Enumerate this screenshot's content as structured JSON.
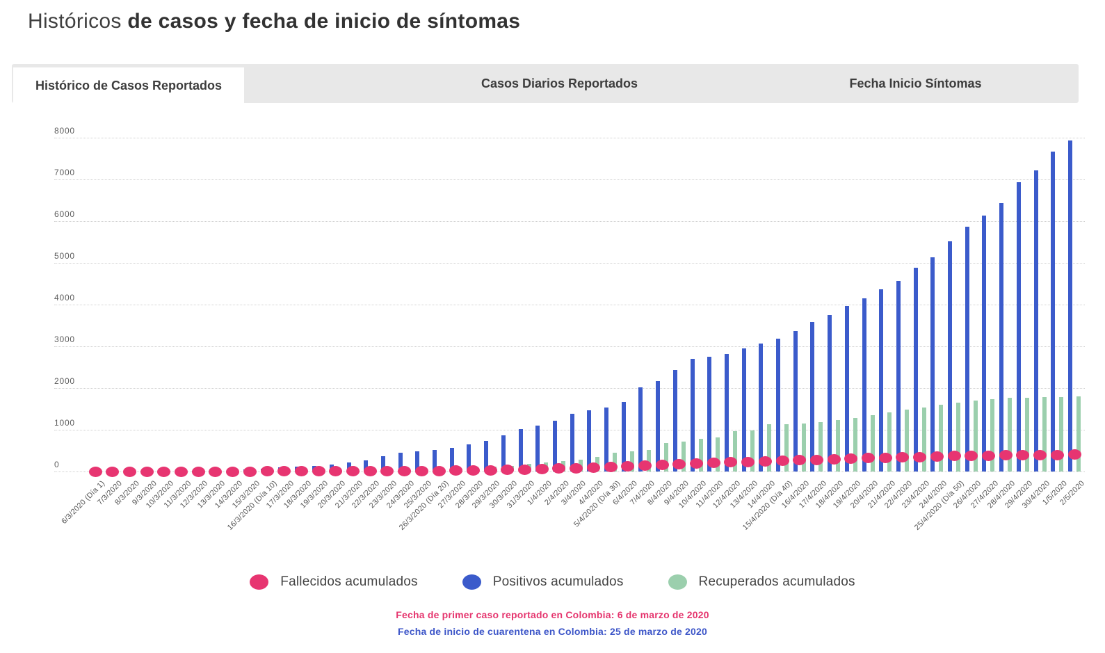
{
  "header": {
    "title_light": "Históricos",
    "title_bold": "de casos y fecha de inicio de síntomas"
  },
  "tabs": [
    {
      "label": "Histórico de Casos Reportados",
      "active": true
    },
    {
      "label": "Casos Diarios Reportados",
      "active": false
    },
    {
      "label": "Fecha Inicio Síntomas",
      "active": false
    }
  ],
  "footnotes": [
    {
      "text": "Fecha de primer caso reportado en Colombia: 6 de marzo de 2020",
      "color": "#e5356e"
    },
    {
      "text": "Fecha de inicio de cuarentena en Colombia: 25 de marzo de 2020",
      "color": "#3c55c8"
    }
  ],
  "chart_data": {
    "type": "bar",
    "title": "Histórico de Casos Reportados",
    "xlabel": "",
    "ylabel": "",
    "ylim": [
      0,
      8000
    ],
    "yticks": [
      0,
      1000,
      2000,
      3000,
      4000,
      5000,
      6000,
      7000,
      8000
    ],
    "grid": true,
    "legend_position": "bottom",
    "categories": [
      "6/3/2020 (Día 1)",
      "7/3/2020",
      "8/3/2020",
      "9/3/2020",
      "10/3/2020",
      "11/3/2020",
      "12/3/2020",
      "13/3/2020",
      "14/3/2020",
      "15/3/2020",
      "16/3/2020 (Día 10)",
      "17/3/2020",
      "18/3/2020",
      "19/3/2020",
      "20/3/2020",
      "21/3/2020",
      "22/3/2020",
      "23/3/2020",
      "24/3/2020",
      "25/3/2020",
      "26/3/2020 (Día 20)",
      "27/3/2020",
      "28/3/2020",
      "29/3/2020",
      "30/3/2020",
      "31/3/2020",
      "1/4/2020",
      "2/4/2020",
      "3/4/2020",
      "4/4/2020",
      "5/4/2020 (Día 30)",
      "6/4/2020",
      "7/4/2020",
      "8/4/2020",
      "9/4/2020",
      "10/4/2020",
      "11/4/2020",
      "12/4/2020",
      "13/4/2020",
      "14/4/2020",
      "15/4/2020 (Día 40)",
      "16/4/2020",
      "17/4/2020",
      "18/4/2020",
      "19/4/2020",
      "20/4/2020",
      "21/4/2020",
      "22/4/2020",
      "23/4/2020",
      "24/4/2020",
      "25/4/2020 (Día 50)",
      "26/4/2020",
      "27/4/2020",
      "28/4/2020",
      "29/4/2020",
      "30/4/2020",
      "1/5/2020",
      "2/5/2020"
    ],
    "series": [
      {
        "name": "Fallecidos acumulados",
        "slug": "fallecidos",
        "style": "dot",
        "color": "#e73571",
        "values": [
          0,
          0,
          0,
          0,
          0,
          0,
          0,
          0,
          0,
          0,
          1,
          1,
          2,
          3,
          4,
          4,
          6,
          6,
          10,
          12,
          16,
          17,
          26,
          32,
          35,
          46,
          55,
          67,
          80,
          100,
          112,
          127,
          145,
          166,
          179,
          196,
          214,
          225,
          233,
          244,
          253,
          269,
          282,
          293,
          308,
          318,
          328,
          340,
          350,
          360,
          370,
          376,
          380,
          386,
          390,
          395,
          400,
          410
        ]
      },
      {
        "name": "Positivos acumulados",
        "slug": "positivos",
        "style": "bar",
        "color": "#3b5bcb",
        "values": [
          1,
          1,
          1,
          3,
          9,
          13,
          22,
          34,
          45,
          57,
          75,
          93,
          110,
          130,
          160,
          210,
          260,
          370,
          445,
          485,
          512,
          570,
          650,
          740,
          870,
          1020,
          1100,
          1220,
          1385,
          1470,
          1530,
          1670,
          2020,
          2175,
          2440,
          2700,
          2750,
          2820,
          2945,
          3060,
          3190,
          3375,
          3580,
          3750,
          3960,
          4150,
          4360,
          4560,
          4880,
          5140,
          5510,
          5870,
          6140,
          6440,
          6930,
          7220,
          7670,
          7940
        ]
      },
      {
        "name": "Recuperados acumulados",
        "slug": "recuperados",
        "style": "bar",
        "color": "#9bcfad",
        "values": [
          0,
          0,
          0,
          0,
          0,
          0,
          0,
          0,
          0,
          0,
          0,
          0,
          0,
          3,
          6,
          10,
          15,
          22,
          30,
          40,
          55,
          70,
          88,
          110,
          140,
          180,
          220,
          250,
          290,
          350,
          450,
          480,
          510,
          680,
          710,
          790,
          820,
          960,
          990,
          1130,
          1140,
          1150,
          1190,
          1230,
          1290,
          1350,
          1420,
          1480,
          1540,
          1600,
          1650,
          1700,
          1740,
          1760,
          1770,
          1780,
          1790,
          1800
        ]
      }
    ]
  }
}
